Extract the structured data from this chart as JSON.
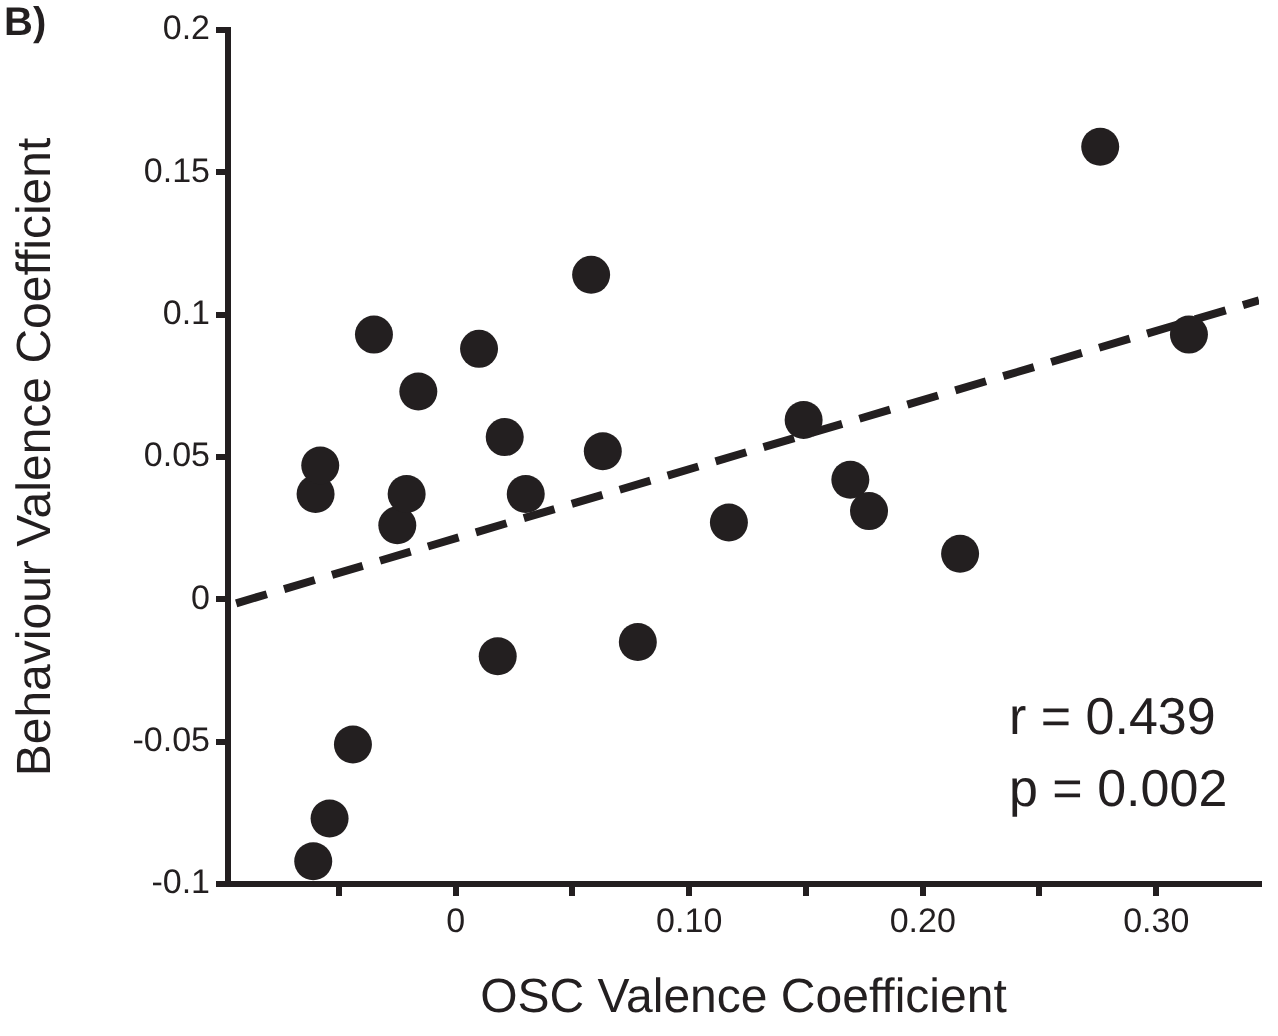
{
  "chart_data": {
    "type": "scatter",
    "xlabel": "OSC Valence Coefficient",
    "ylabel": "Behaviour Valence Coefficient",
    "annotations": [
      "B)",
      "r = 0.439",
      "p = 0.002"
    ],
    "xlim": [
      -0.0975,
      0.344
    ],
    "ylim": [
      -0.1,
      0.2
    ],
    "xticks": [
      {
        "value": -0.05,
        "label": null
      },
      0,
      {
        "value": 0.05,
        "label": null
      },
      {
        "value": 0.1,
        "label": "0.10"
      },
      {
        "value": 0.15,
        "label": null
      },
      {
        "value": 0.2,
        "label": "0.20"
      },
      {
        "value": 0.25,
        "label": null
      },
      {
        "value": 0.3,
        "label": "0.30"
      }
    ],
    "yticks": [
      -0.1,
      -0.05,
      0,
      0.05,
      0.1,
      0.15,
      0.2
    ],
    "marker": "circle",
    "series": [
      {
        "color": "#231f20",
        "x": [
          -0.061,
          -0.054,
          -0.044,
          -0.06,
          -0.058,
          -0.035,
          -0.025,
          -0.021,
          -0.016,
          0.01,
          0.021,
          0.018,
          0.03,
          0.058,
          0.063,
          0.078,
          0.117,
          0.149,
          0.169,
          0.177,
          0.216,
          0.276,
          0.314
        ],
        "values": [
          -0.092,
          -0.077,
          -0.051,
          0.037,
          0.047,
          0.093,
          0.026,
          0.037,
          0.073,
          0.088,
          0.057,
          -0.02,
          0.037,
          0.114,
          0.052,
          -0.015,
          0.027,
          0.063,
          0.042,
          0.031,
          0.016,
          0.159,
          0.093
        ]
      },
      {
        "type": "line",
        "color": "#231f20",
        "line_style": "dashed",
        "marker": "none",
        "x": [
          -0.094,
          0.344
        ],
        "values": [
          -0.0014,
          0.105
        ]
      }
    ]
  }
}
